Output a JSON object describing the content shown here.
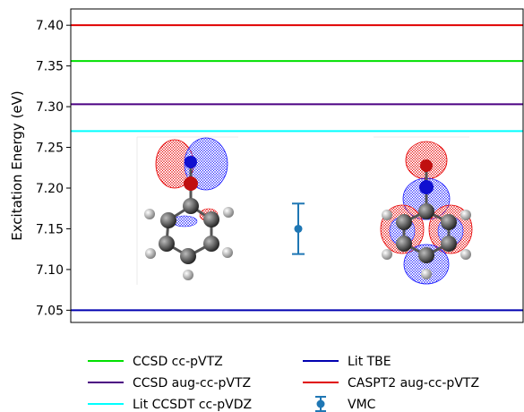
{
  "chart_data": {
    "type": "line",
    "title": "",
    "xlabel": "",
    "ylabel": "Excitation Energy (eV)",
    "ylim": [
      7.035,
      7.42
    ],
    "yticks": [
      7.05,
      7.1,
      7.15,
      7.2,
      7.25,
      7.3,
      7.35,
      7.4
    ],
    "ytick_labels": [
      "7.05",
      "7.10",
      "7.15",
      "7.20",
      "7.25",
      "7.30",
      "7.35",
      "7.40"
    ],
    "reference_lines": [
      {
        "name": "CCSD cc-pVTZ",
        "value": 7.356,
        "color": "#00e000"
      },
      {
        "name": "CCSD aug-cc-pVTZ",
        "value": 7.303,
        "color": "#4b0082"
      },
      {
        "name": "Lit CCSDT cc-pVDZ",
        "value": 7.27,
        "color": "#00ffff"
      },
      {
        "name": "Lit TBE",
        "value": 7.05,
        "color": "#0000b0"
      },
      {
        "name": "CASPT2 aug-cc-pVTZ",
        "value": 7.4,
        "color": "#e00000"
      }
    ],
    "points": [
      {
        "name": "VMC",
        "value": 7.15,
        "error": 0.031,
        "color": "#1f77b4"
      }
    ],
    "legend": {
      "placement": "below",
      "left_column": [
        "CCSD cc-pVTZ",
        "CCSD aug-cc-pVTZ",
        "Lit CCSDT cc-pVDZ"
      ],
      "right_column": [
        "Lit TBE",
        "CASPT2 aug-cc-pVTZ",
        "VMC"
      ]
    }
  }
}
